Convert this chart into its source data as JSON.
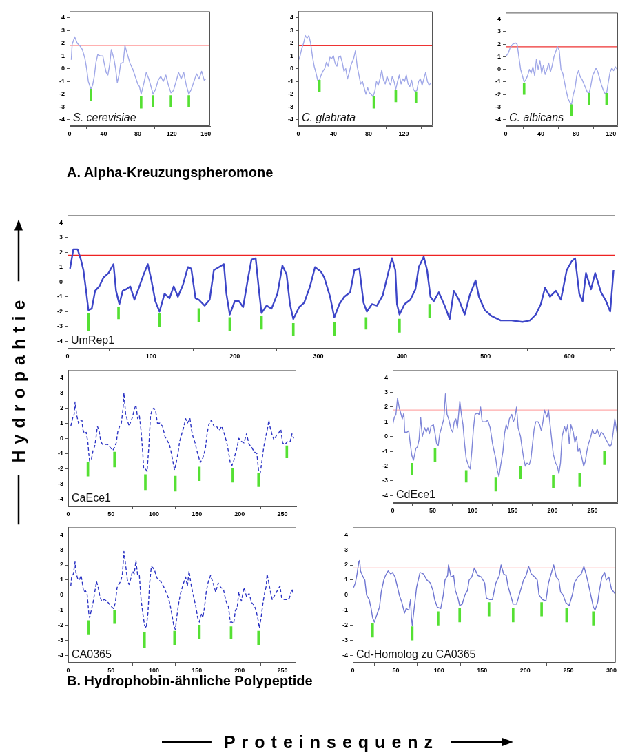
{
  "chart_data": [
    {
      "type": "line",
      "title": "S. cerevisiae",
      "annotations": [
        "A. Alpha-Kreuzungspheromone"
      ],
      "xlim": [
        0,
        165
      ],
      "xticks": [
        0,
        40,
        80,
        120,
        160
      ],
      "ylim": [
        -4.5,
        4.5
      ],
      "yticks": [
        -4,
        -3,
        -2,
        -1,
        0,
        1,
        2,
        3,
        4
      ],
      "ref_lines": [
        {
          "axis": "y",
          "value": 1.8,
          "color": "#ffb0b0"
        }
      ],
      "series": [
        {
          "x": [
            2,
            3,
            6,
            9,
            12,
            15,
            18,
            20,
            22,
            25,
            27,
            29,
            31,
            33,
            36,
            39,
            41,
            43,
            45,
            47,
            49,
            52,
            54,
            56,
            58,
            60,
            63,
            65,
            68,
            71,
            74,
            77,
            80,
            82,
            84,
            87,
            90,
            93,
            96,
            98,
            101,
            104,
            107,
            110,
            113,
            116,
            119,
            122,
            125,
            128,
            131,
            134,
            137,
            140,
            143,
            146,
            149,
            152,
            155,
            158,
            160
          ],
          "values": [
            0.7,
            1.9,
            2.5,
            2.0,
            1.8,
            1.5,
            0.8,
            0.0,
            -1.0,
            -1.6,
            -1.3,
            -0.6,
            0.5,
            1.1,
            1.0,
            1.0,
            0.3,
            -0.3,
            -0.5,
            0.3,
            1.5,
            0.8,
            0.0,
            -1.1,
            -0.5,
            0.4,
            0.5,
            1.8,
            1.1,
            0.4,
            0.0,
            -0.6,
            -1.2,
            -1.4,
            -2.0,
            -1.2,
            -0.3,
            -0.8,
            -1.5,
            -2.0,
            -1.6,
            -0.9,
            -0.6,
            -1.0,
            -0.5,
            -1.3,
            -1.9,
            -1.7,
            -1.0,
            -0.3,
            -0.8,
            -0.3,
            -1.3,
            -2.0,
            -1.6,
            -1.0,
            -0.4,
            -0.8,
            -0.2,
            -0.9,
            -0.8
          ],
          "color": "#a0a8e8"
        },
        {
          "type": "bar",
          "x": [
            25,
            84,
            98,
            119,
            140
          ],
          "base": [
            -2.5,
            -3.1,
            -3.0,
            -3.0,
            -3.0
          ],
          "values": [
            0.9,
            0.9,
            0.9,
            0.9,
            0.9
          ],
          "color": "#55e033"
        }
      ]
    },
    {
      "type": "line",
      "title": "C. glabrata",
      "xlim": [
        0,
        153
      ],
      "xticks": [
        0,
        40,
        80,
        120
      ],
      "ylim": [
        -4.5,
        4.5
      ],
      "yticks": [
        -4,
        -3,
        -2,
        -1,
        0,
        1,
        2,
        3,
        4
      ],
      "ref_lines": [
        {
          "axis": "y",
          "value": 1.8,
          "color": "#ee3333"
        }
      ],
      "series": [
        {
          "x": [
            0,
            2,
            4,
            6,
            8,
            10,
            12,
            14,
            16,
            18,
            20,
            22,
            24,
            26,
            28,
            30,
            32,
            34,
            36,
            38,
            40,
            42,
            44,
            46,
            48,
            50,
            52,
            54,
            56,
            58,
            60,
            63,
            65,
            67,
            69,
            71,
            73,
            75,
            77,
            79,
            81,
            83,
            85,
            87,
            89,
            91,
            93,
            95,
            97,
            99,
            101,
            103,
            105,
            107,
            109,
            111,
            113,
            115,
            117,
            119,
            121,
            123,
            125,
            127,
            129,
            131,
            133,
            135,
            137,
            139,
            141,
            143,
            145,
            147,
            149,
            151
          ],
          "values": [
            0.6,
            1.0,
            1.6,
            2.0,
            2.6,
            2.4,
            2.6,
            2.0,
            1.0,
            0.2,
            -0.3,
            -0.9,
            -0.9,
            -0.5,
            -0.2,
            0.0,
            0.5,
            0.2,
            0.9,
            0.8,
            1.0,
            0.4,
            0.2,
            0.9,
            1.0,
            0.5,
            -0.2,
            0.0,
            -0.8,
            -0.3,
            0.3,
            0.8,
            1.4,
            0.2,
            -0.5,
            -1.2,
            -1.0,
            -1.5,
            -2.0,
            -1.5,
            -1.9,
            -2.0,
            -2.2,
            -1.8,
            -1.0,
            -1.3,
            -0.8,
            -0.1,
            -0.9,
            -1.2,
            -0.6,
            -1.0,
            -1.3,
            -0.6,
            -1.0,
            -1.6,
            -1.0,
            -0.5,
            -1.2,
            -0.8,
            -1.0,
            -0.5,
            -1.2,
            -1.4,
            -0.9,
            -1.6,
            -1.8,
            -1.7,
            -1.0,
            -0.8,
            -1.3,
            -0.8,
            -0.3,
            -1.0,
            -1.3,
            -1.1
          ],
          "color": "#a0a8e8"
        },
        {
          "type": "bar",
          "x": [
            24,
            86,
            111,
            134
          ],
          "base": [
            -1.8,
            -3.1,
            -2.6,
            -2.7
          ],
          "values": [
            0.9,
            0.9,
            0.9,
            0.9
          ],
          "color": "#55e033"
        }
      ]
    },
    {
      "type": "line",
      "title": "C. albicans",
      "xlim": [
        0,
        128
      ],
      "xticks": [
        0,
        40,
        80,
        120
      ],
      "ylim": [
        -4.5,
        4.5
      ],
      "yticks": [
        -4,
        -3,
        -2,
        -1,
        0,
        1,
        2,
        3,
        4
      ],
      "ref_lines": [
        {
          "axis": "y",
          "value": 1.8,
          "color": "#ee3333"
        }
      ],
      "series": [
        {
          "x": [
            0,
            3,
            5,
            8,
            11,
            13,
            15,
            17,
            19,
            21,
            23,
            25,
            27,
            29,
            31,
            33,
            35,
            37,
            39,
            41,
            43,
            45,
            47,
            49,
            51,
            53,
            55,
            57,
            59,
            61,
            63,
            65,
            67,
            69,
            71,
            73,
            75,
            77,
            79,
            81,
            83,
            85,
            87,
            90,
            93,
            95,
            97,
            99,
            101,
            103,
            105,
            107,
            109,
            111,
            113,
            115,
            117,
            119,
            121,
            123,
            125,
            127
          ],
          "values": [
            1.0,
            1.3,
            1.7,
            2.0,
            2.1,
            2.0,
            1.0,
            0.0,
            -0.5,
            -1.0,
            -0.8,
            -0.5,
            0.0,
            -0.3,
            0.2,
            -0.5,
            0.8,
            0.0,
            0.7,
            -0.3,
            0.3,
            -0.4,
            0.0,
            0.5,
            -0.2,
            0.3,
            1.0,
            1.4,
            1.8,
            1.5,
            0.0,
            -0.3,
            -1.0,
            -1.7,
            -2.3,
            -2.6,
            -2.8,
            -2.0,
            -1.5,
            -0.5,
            -0.1,
            -0.6,
            -0.8,
            -1.3,
            -1.8,
            -1.9,
            -1.3,
            -0.5,
            -0.2,
            0.1,
            -0.2,
            -0.7,
            -1.2,
            -1.6,
            -1.9,
            -1.9,
            -1.0,
            -0.2,
            0.1,
            -0.1,
            0.2,
            0.0
          ],
          "color": "#a0a8e8"
        },
        {
          "type": "bar",
          "x": [
            21,
            75,
            95,
            115
          ],
          "base": [
            -2.0,
            -3.7,
            -2.8,
            -2.8
          ],
          "values": [
            0.9,
            0.9,
            0.9,
            0.9
          ],
          "color": "#55e033"
        }
      ]
    },
    {
      "type": "line",
      "title": "UmRep1",
      "ylabel": "Hydropahtie",
      "xlim": [
        0,
        655
      ],
      "xticks": [
        0,
        100,
        200,
        300,
        400,
        500,
        600
      ],
      "ylim": [
        -4.5,
        4.5
      ],
      "yticks": [
        -4,
        -3,
        -2,
        -1,
        0,
        1,
        2,
        3,
        4
      ],
      "ref_lines": [
        {
          "axis": "y",
          "value": 1.8,
          "color": "#ee2222"
        }
      ],
      "series": [
        {
          "x": [
            3,
            7,
            12,
            16,
            19,
            22,
            25,
            29,
            33,
            38,
            43,
            49,
            53,
            55,
            58,
            62,
            66,
            70,
            75,
            80,
            86,
            91,
            96,
            100,
            105,
            110,
            116,
            122,
            127,
            132,
            138,
            144,
            148,
            153,
            157,
            164,
            170,
            175,
            181,
            187,
            190,
            194,
            200,
            205,
            210,
            216,
            220,
            225,
            229,
            232,
            238,
            244,
            251,
            257,
            262,
            266,
            270,
            277,
            283,
            290,
            296,
            303,
            307,
            314,
            319,
            325,
            331,
            338,
            343,
            349,
            354,
            358,
            364,
            370,
            377,
            383,
            388,
            392,
            394,
            397,
            403,
            410,
            416,
            420,
            426,
            430,
            434,
            438,
            444,
            451,
            457,
            462,
            468,
            475,
            481,
            488,
            492,
            499,
            507,
            518,
            531,
            544,
            553,
            560,
            566,
            571,
            577,
            584,
            590,
            597,
            603,
            607,
            612,
            616,
            620,
            626,
            631,
            638,
            644,
            649,
            653
          ],
          "values": [
            0.9,
            2.2,
            2.2,
            1.5,
            0.8,
            -0.5,
            -1.9,
            -1.8,
            -0.6,
            -0.3,
            0.3,
            0.6,
            1.0,
            1.2,
            -0.6,
            -1.5,
            -0.6,
            -0.5,
            -0.3,
            -1.2,
            -0.3,
            0.5,
            1.2,
            0.2,
            -1.3,
            -2.0,
            -0.8,
            -1.1,
            -0.3,
            -1.0,
            -0.2,
            1.0,
            0.9,
            -1.1,
            -1.2,
            -1.6,
            -1.2,
            0.8,
            1.0,
            1.2,
            -0.8,
            -2.2,
            -1.3,
            -1.3,
            -1.7,
            0.3,
            1.5,
            1.6,
            -0.6,
            -2.1,
            -1.6,
            -1.8,
            -0.8,
            1.1,
            0.5,
            -1.5,
            -2.5,
            -1.7,
            -1.4,
            -0.3,
            1.0,
            0.7,
            0.3,
            -1.0,
            -2.4,
            -1.5,
            -1.0,
            -0.7,
            0.8,
            0.9,
            -1.4,
            -2.0,
            -1.5,
            -1.6,
            -0.9,
            0.5,
            1.6,
            0.8,
            -1.5,
            -2.2,
            -1.5,
            -1.2,
            -0.5,
            1.0,
            1.7,
            0.8,
            -1.0,
            -1.3,
            -0.7,
            -1.6,
            -2.5,
            -0.6,
            -1.2,
            -2.2,
            -0.9,
            0.1,
            -1.0,
            -1.9,
            -2.3,
            -2.6,
            -2.6,
            -2.7,
            -2.6,
            -2.2,
            -1.5,
            -0.4,
            -1.0,
            -0.6,
            -1.2,
            0.8,
            1.4,
            1.6,
            -0.8,
            -1.3,
            0.6,
            -0.5,
            0.6,
            -0.7,
            -1.3,
            -2.0,
            0.8
          ],
          "color": "#3d46c8"
        },
        {
          "type": "bar",
          "x": [
            25,
            61,
            110,
            157,
            194,
            232,
            270,
            319,
            357,
            397,
            433
          ],
          "base": [
            -3.3,
            -2.5,
            -3.0,
            -2.7,
            -3.3,
            -3.2,
            -3.6,
            -3.6,
            -3.2,
            -3.4,
            -2.4
          ],
          "values": [
            1.2,
            0.8,
            0.9,
            0.9,
            0.9,
            0.9,
            0.8,
            0.9,
            0.8,
            0.9,
            0.9
          ],
          "color": "#55e033"
        }
      ]
    },
    {
      "type": "line",
      "title": "CaEce1",
      "line_style": "dashed",
      "xlim": [
        0,
        266
      ],
      "xticks": [
        0,
        50,
        100,
        150,
        200,
        250
      ],
      "ylim": [
        -4.5,
        4.5
      ],
      "yticks": [
        -4,
        -3,
        -2,
        -1,
        0,
        1,
        2,
        3,
        4
      ],
      "series": [
        {
          "x": [
            3,
            5,
            7,
            8,
            10,
            12,
            14,
            16,
            17,
            19,
            21,
            23,
            24,
            25,
            27,
            29,
            31,
            33,
            34,
            36,
            38,
            40,
            43,
            46,
            49,
            52,
            54,
            56,
            58,
            60,
            62,
            64,
            65,
            67,
            69,
            71,
            73,
            75,
            77,
            79,
            81,
            83,
            85,
            87,
            88,
            90,
            92,
            94,
            96,
            98,
            100,
            102,
            104,
            107,
            110,
            113,
            116,
            118,
            120,
            122,
            124,
            126,
            128,
            130,
            132,
            135,
            137,
            139,
            142,
            144,
            146,
            148,
            150,
            152,
            154,
            157,
            160,
            162,
            164,
            167,
            170,
            173,
            176,
            179,
            182,
            185,
            187,
            189,
            191,
            193,
            195,
            197,
            199,
            202,
            205,
            208,
            211,
            214,
            217,
            220,
            222,
            224,
            226,
            228,
            230,
            233,
            234,
            236,
            238,
            240,
            243,
            246,
            248,
            250,
            253,
            256,
            259,
            261,
            263
          ],
          "values": [
            0.8,
            1.3,
            1.6,
            2.4,
            1.5,
            1.0,
            1.2,
            1.2,
            0.6,
            0.3,
            0.4,
            -0.3,
            -1.0,
            -1.5,
            -1.4,
            -0.8,
            -0.5,
            0.3,
            0.8,
            0.5,
            -0.2,
            -0.4,
            -0.4,
            -0.4,
            -0.6,
            -0.8,
            -0.6,
            -0.3,
            0.5,
            0.8,
            1.0,
            2.0,
            3.0,
            1.6,
            1.2,
            0.8,
            1.1,
            1.4,
            1.9,
            2.2,
            1.3,
            1.5,
            0.5,
            -1.0,
            -2.0,
            -2.0,
            -2.2,
            -0.6,
            1.5,
            1.9,
            2.0,
            1.8,
            1.0,
            1.0,
            0.8,
            0.1,
            -0.2,
            -0.4,
            -0.9,
            -1.5,
            -2.1,
            -1.6,
            -1.0,
            -0.2,
            0.2,
            0.8,
            1.3,
            1.0,
            1.3,
            0.5,
            0.0,
            -0.3,
            -0.8,
            -1.2,
            -1.6,
            -1.3,
            -0.7,
            0.3,
            0.9,
            1.2,
            0.8,
            0.8,
            0.5,
            0.8,
            0.3,
            -0.3,
            -0.9,
            -1.6,
            -1.8,
            -1.5,
            -1.0,
            -0.6,
            0.0,
            -0.2,
            -0.3,
            0.3,
            -0.4,
            -0.6,
            -0.9,
            -1.0,
            -2.1,
            -2.3,
            -1.5,
            -0.6,
            0.0,
            0.8,
            1.2,
            0.6,
            0.2,
            -0.1,
            0.2,
            0.4,
            0.6,
            -0.3,
            -0.4,
            -0.2,
            -0.2,
            0.3,
            0.0
          ],
          "color": "#2b33c4"
        },
        {
          "type": "bar",
          "x": [
            23,
            54,
            90,
            125,
            153,
            192,
            222,
            255
          ],
          "base": [
            -2.5,
            -1.9,
            -3.4,
            -3.5,
            -2.8,
            -2.9,
            -3.2,
            -1.3
          ],
          "values": [
            0.9,
            1.0,
            1.0,
            1.0,
            0.9,
            0.9,
            0.9,
            0.8
          ],
          "color": "#55e033"
        }
      ]
    },
    {
      "type": "line",
      "title": "CdEce1",
      "xlim": [
        0,
        282
      ],
      "xticks": [
        0,
        50,
        100,
        150,
        200,
        250
      ],
      "ylim": [
        -4.5,
        4.5
      ],
      "yticks": [
        -4,
        -3,
        -2,
        -1,
        0,
        1,
        2,
        3,
        4
      ],
      "ref_lines": [
        {
          "axis": "y",
          "value": 1.8,
          "color": "#ffaaaa"
        }
      ],
      "series": [
        {
          "x": [
            0,
            2,
            4,
            6,
            8,
            10,
            12,
            14,
            15,
            18,
            20,
            22,
            24,
            26,
            29,
            31,
            33,
            35,
            37,
            40,
            42,
            44,
            46,
            48,
            51,
            53,
            55,
            57,
            59,
            62,
            64,
            66,
            68,
            70,
            73,
            75,
            77,
            79,
            81,
            84,
            86,
            88,
            90,
            92,
            95,
            97,
            99,
            101,
            103,
            106,
            108,
            110,
            112,
            116,
            119,
            122,
            125,
            129,
            131,
            133,
            135,
            138,
            140,
            142,
            144,
            146,
            149,
            151,
            153,
            155,
            157,
            160,
            162,
            164,
            166,
            168,
            171,
            173,
            175,
            177,
            179,
            182,
            184,
            186,
            188,
            190,
            193,
            195,
            197,
            199,
            201,
            204,
            206,
            208,
            210,
            212,
            215,
            217,
            219,
            221,
            223,
            226,
            228,
            230,
            232,
            234,
            237,
            239,
            241,
            243,
            245,
            248,
            250,
            252,
            254,
            256,
            259,
            261,
            263,
            265,
            267,
            270,
            272,
            274,
            276,
            278,
            281
          ],
          "values": [
            0.8,
            1.3,
            1.5,
            2.6,
            2.0,
            1.6,
            1.2,
            1.6,
            0.3,
            0.3,
            0.4,
            -0.5,
            -1.3,
            -1.6,
            -0.8,
            -0.7,
            -0.2,
            1.3,
            0.0,
            0.6,
            0.3,
            0.6,
            0.2,
            0.7,
            0.8,
            0.2,
            -0.5,
            -0.6,
            0.2,
            0.8,
            1.2,
            2.9,
            1.5,
            1.2,
            0.5,
            0.3,
            1.0,
            1.2,
            0.6,
            2.4,
            1.5,
            0.8,
            -0.5,
            -1.5,
            -2.0,
            -2.2,
            -1.0,
            0.5,
            1.5,
            1.6,
            1.5,
            2.0,
            1.0,
            1.0,
            1.1,
            0.6,
            -0.5,
            -1.5,
            -2.3,
            -2.7,
            -2.0,
            -1.0,
            0.2,
            0.8,
            0.5,
            1.2,
            1.5,
            1.0,
            1.3,
            2.0,
            0.6,
            0.0,
            -0.8,
            -1.5,
            -2.0,
            -1.8,
            -1.9,
            -1.5,
            -0.5,
            0.5,
            1.0,
            1.0,
            0.8,
            0.4,
            1.0,
            1.8,
            1.3,
            1.8,
            0.8,
            -0.2,
            -1.2,
            -1.8,
            -2.0,
            -2.5,
            -1.8,
            0.0,
            0.7,
            0.3,
            0.8,
            -0.5,
            0.8,
            0.3,
            -0.4,
            0.0,
            -1.0,
            -0.8,
            -1.5,
            -2.0,
            -1.7,
            -1.0,
            -0.5,
            0.0,
            0.5,
            0.2,
            0.2,
            0.5,
            0.0,
            0.3,
            0.2,
            0.0,
            -0.2,
            -0.5,
            -0.7,
            -0.5,
            0.3,
            1.2,
            0.2
          ],
          "color": "#7f86d8"
        },
        {
          "type": "bar",
          "x": [
            24,
            53,
            92,
            129,
            160,
            201,
            234,
            265
          ],
          "base": [
            -2.6,
            -1.7,
            -3.1,
            -3.7,
            -2.9,
            -3.5,
            -3.4,
            -1.9
          ],
          "values": [
            0.8,
            0.9,
            0.8,
            0.9,
            0.9,
            0.9,
            0.9,
            0.9
          ],
          "color": "#55e033"
        }
      ]
    },
    {
      "type": "line",
      "title": "CA0365",
      "line_style": "dashed",
      "xlim": [
        0,
        266
      ],
      "xticks": [
        0,
        50,
        100,
        150,
        200,
        250
      ],
      "ylim": [
        -4.5,
        4.5
      ],
      "yticks": [
        -4,
        -3,
        -2,
        -1,
        0,
        1,
        2,
        3,
        4
      ],
      "series": [
        {
          "x": [
            3,
            4,
            6,
            7,
            8,
            9,
            11,
            13,
            15,
            16,
            18,
            20,
            22,
            23,
            24,
            25,
            27,
            29,
            31,
            33,
            35,
            37,
            39,
            42,
            45,
            48,
            51,
            53,
            55,
            57,
            59,
            61,
            63,
            64,
            65,
            67,
            69,
            71,
            73,
            75,
            77,
            79,
            81,
            83,
            85,
            87,
            89,
            91,
            93,
            95,
            97,
            99,
            101,
            103,
            105,
            108,
            111,
            114,
            117,
            119,
            121,
            123,
            125,
            127,
            129,
            131,
            134,
            137,
            139,
            141,
            143,
            145,
            147,
            149,
            151,
            153,
            155,
            157,
            159,
            161,
            163,
            166,
            169,
            172,
            175,
            178,
            181,
            184,
            187,
            189,
            191,
            193,
            195,
            197,
            199,
            202,
            205,
            208,
            211,
            214,
            217,
            219,
            221,
            223,
            225,
            227,
            229,
            231,
            232,
            234,
            236,
            238,
            241,
            244,
            247,
            249,
            252,
            255,
            258,
            261,
            263
          ],
          "values": [
            0.6,
            1.2,
            1.4,
            1.8,
            2.2,
            1.5,
            1.1,
            1.0,
            1.3,
            1.0,
            0.2,
            0.3,
            0.1,
            -0.5,
            -1.2,
            -1.5,
            -1.0,
            -0.5,
            0.2,
            0.9,
            0.5,
            -0.1,
            -0.4,
            -0.3,
            -0.4,
            -0.6,
            -0.8,
            -0.9,
            -0.5,
            0.5,
            0.7,
            0.9,
            1.3,
            2.0,
            2.9,
            2.0,
            1.0,
            0.7,
            1.1,
            1.6,
            1.4,
            2.3,
            1.3,
            1.3,
            -0.3,
            -1.2,
            -2.0,
            -2.2,
            -1.2,
            0.8,
            1.9,
            1.8,
            1.6,
            1.2,
            1.0,
            0.9,
            0.6,
            0.2,
            -0.2,
            -0.7,
            -1.3,
            -2.0,
            -2.3,
            -1.3,
            -0.5,
            0.1,
            0.7,
            1.2,
            0.6,
            1.6,
            0.8,
            0.2,
            -0.3,
            -0.8,
            -1.5,
            -1.8,
            -1.2,
            -1.5,
            -0.8,
            0.2,
            0.8,
            1.3,
            0.8,
            0.2,
            0.8,
            0.5,
            0.4,
            -0.4,
            -0.8,
            -1.8,
            -1.8,
            -1.9,
            -1.0,
            -0.9,
            0.2,
            -0.4,
            0.5,
            -0.1,
            0.1,
            -0.5,
            -0.7,
            -1.0,
            -1.5,
            -2.2,
            -1.5,
            -0.6,
            0.1,
            0.6,
            1.4,
            0.8,
            0.2,
            -0.3,
            0.0,
            0.3,
            0.6,
            -0.2,
            -0.3,
            -0.3,
            -0.2,
            0.4,
            0.0
          ],
          "color": "#2b33c4"
        },
        {
          "type": "bar",
          "x": [
            24,
            54,
            89,
            124,
            153,
            190,
            222
          ],
          "base": [
            -2.6,
            -1.9,
            -3.5,
            -3.3,
            -2.9,
            -2.9,
            -3.3
          ],
          "values": [
            0.9,
            0.9,
            1.0,
            0.9,
            0.9,
            0.8,
            0.9
          ],
          "color": "#55e033"
        }
      ]
    },
    {
      "type": "line",
      "title": "Cd-Homolog zu CA0365",
      "xlabel": "Proteinsequenz",
      "annotations": [
        "B. Hydrophobin-ähnliche Polypeptide"
      ],
      "xlim": [
        0,
        305
      ],
      "xticks": [
        0,
        50,
        100,
        150,
        200,
        250,
        300
      ],
      "ylim": [
        -4.5,
        4.5
      ],
      "yticks": [
        -4,
        -3,
        -2,
        -1,
        0,
        1,
        2,
        3,
        4
      ],
      "ref_lines": [
        {
          "axis": "y",
          "value": 1.8,
          "color": "#ffa0a0"
        }
      ],
      "series": [
        {
          "x": [
            1,
            3,
            5,
            7,
            8,
            9,
            12,
            14,
            16,
            19,
            21,
            23,
            25,
            28,
            31,
            33,
            36,
            38,
            41,
            44,
            46,
            49,
            52,
            54,
            57,
            60,
            62,
            65,
            67,
            68,
            69,
            72,
            74,
            76,
            78,
            82,
            86,
            90,
            93,
            95,
            98,
            102,
            105,
            107,
            110,
            111,
            114,
            117,
            119,
            122,
            124,
            127,
            130,
            133,
            135,
            138,
            141,
            145,
            149,
            153,
            155,
            159,
            162,
            166,
            170,
            172,
            175,
            178,
            180,
            183,
            186,
            190,
            194,
            198,
            201,
            204,
            207,
            211,
            214,
            216,
            220,
            224,
            227,
            229,
            233,
            236,
            239,
            241,
            244,
            247,
            251,
            255,
            257,
            261,
            265,
            268,
            271,
            273,
            276,
            279,
            281,
            284,
            286,
            289,
            292,
            294,
            297,
            300,
            304
          ],
          "values": [
            0.5,
            0.8,
            1.4,
            2.2,
            2.3,
            1.6,
            1.2,
            1.0,
            0.0,
            -0.3,
            -0.8,
            -1.5,
            -1.8,
            -1.3,
            -0.8,
            0.2,
            1.0,
            1.3,
            1.6,
            1.4,
            1.5,
            1.2,
            0.5,
            0.0,
            -0.5,
            -1.2,
            -0.9,
            -1.0,
            -0.3,
            -1.5,
            -2.0,
            -0.5,
            0.5,
            1.0,
            1.5,
            1.4,
            1.0,
            0.8,
            0.3,
            -0.3,
            -0.8,
            -0.9,
            0.0,
            1.0,
            1.3,
            2.0,
            1.2,
            1.3,
            0.3,
            -0.2,
            -0.7,
            -0.6,
            0.0,
            0.3,
            1.0,
            1.2,
            1.8,
            1.3,
            1.2,
            0.8,
            -0.2,
            -0.3,
            -0.3,
            0.8,
            1.3,
            2.0,
            1.4,
            1.3,
            0.6,
            0.0,
            -0.6,
            -0.6,
            0.2,
            1.0,
            1.3,
            1.9,
            1.4,
            1.2,
            1.0,
            0.0,
            -0.3,
            -0.4,
            0.8,
            1.2,
            2.0,
            1.2,
            1.0,
            0.2,
            0.0,
            -0.5,
            -0.7,
            0.1,
            0.8,
            1.2,
            1.4,
            1.9,
            1.3,
            0.8,
            0.0,
            -0.8,
            -1.0,
            -0.5,
            0.3,
            1.2,
            1.5,
            1.0,
            1.2,
            0.4,
            0.1
          ],
          "color": "#6f76d2"
        },
        {
          "type": "bar",
          "x": [
            23,
            69,
            99,
            124,
            158,
            186,
            219,
            248,
            279
          ],
          "base": [
            -2.8,
            -3.0,
            -2.0,
            -1.8,
            -1.4,
            -1.8,
            -1.4,
            -1.8,
            -2.0
          ],
          "values": [
            0.9,
            0.9,
            0.9,
            0.9,
            0.9,
            0.9,
            0.9,
            0.9,
            0.9
          ],
          "color": "#55e033"
        }
      ]
    }
  ]
}
